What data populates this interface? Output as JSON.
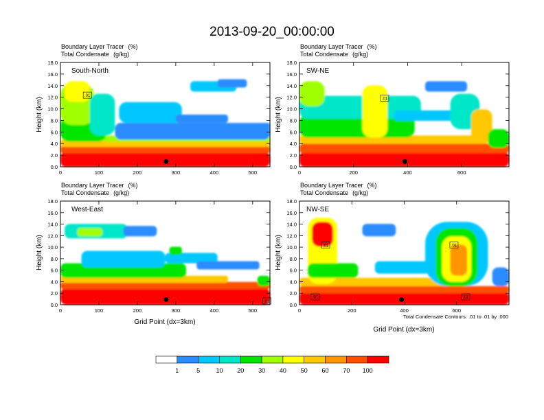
{
  "figure": {
    "title": "2013-09-20_00:00:00",
    "contour_note": "Total Condensate Contours: .01 to .01 by .000"
  },
  "chart_data": [
    {
      "type": "heatmap",
      "panel_label": "South-North",
      "subtitle_left": "Boundary Layer Tracer",
      "subtitle_left_unit": "(%)",
      "subtitle_left2": "Total Condensate",
      "subtitle_left2_unit": "(g/kg)",
      "ylabel": "Height (km)",
      "xlabel": "",
      "xlim": [
        0,
        545
      ],
      "ylim": [
        0,
        18
      ],
      "x_ticks": [
        0,
        100,
        200,
        300,
        400,
        500
      ],
      "y_ticks": [
        "0.0",
        "2.0",
        "4.0",
        "6.0",
        "8.0",
        "10.0",
        "12.0",
        "14.0",
        "16.0",
        "18.0"
      ],
      "contour_labels": [
        {
          "text": ".01",
          "x": 70,
          "y": 12.3
        }
      ],
      "marker": {
        "x": 275,
        "y": 0.9
      }
    },
    {
      "type": "heatmap",
      "panel_label": "SW-NE",
      "subtitle_left": "Boundary Layer Tracer",
      "subtitle_left_unit": "(%)",
      "subtitle_left2": "Total Condensate",
      "subtitle_left2_unit": "(g/kg)",
      "ylabel": "Height (km)",
      "xlabel": "",
      "xlim": [
        0,
        775
      ],
      "ylim": [
        0,
        18
      ],
      "x_ticks": [
        0,
        200,
        400,
        600
      ],
      "y_ticks": [
        "0.0",
        "2.0",
        "4.0",
        "6.0",
        "8.0",
        "10.0",
        "12.0",
        "14.0",
        "16.0",
        "18.0"
      ],
      "contour_labels": [
        {
          "text": ".01",
          "x": 315,
          "y": 11.8
        }
      ],
      "marker": {
        "x": 390,
        "y": 0.9
      }
    },
    {
      "type": "heatmap",
      "panel_label": "West-East",
      "subtitle_left": "Boundary Layer Tracer",
      "subtitle_left_unit": "(%)",
      "subtitle_left2": "Total Condensate",
      "subtitle_left2_unit": "(g/kg)",
      "ylabel": "Height (km)",
      "xlabel": "Grid Point (dx=3km)",
      "xlim": [
        0,
        545
      ],
      "ylim": [
        0,
        18
      ],
      "x_ticks": [
        0,
        100,
        200,
        300,
        400,
        500
      ],
      "y_ticks": [
        "0.0",
        "2.0",
        "4.0",
        "6.0",
        "8.0",
        "10.0",
        "12.0",
        "14.0",
        "16.0",
        "18.0"
      ],
      "contour_labels": [
        {
          "text": ".01",
          "x": 537,
          "y": 0.6
        }
      ],
      "marker": {
        "x": 275,
        "y": 0.9
      }
    },
    {
      "type": "heatmap",
      "panel_label": "NW-SE",
      "subtitle_left": "Boundary Layer Tracer",
      "subtitle_left_unit": "(%)",
      "subtitle_left2": "Total Condensate",
      "subtitle_left2_unit": "(g/kg)",
      "ylabel": "Height (km)",
      "xlabel": "Grid Point (dx=3km)",
      "xlim": [
        0,
        800
      ],
      "ylim": [
        0,
        18
      ],
      "x_ticks": [
        0,
        200,
        400,
        600
      ],
      "y_ticks": [
        "0.0",
        "2.0",
        "4.0",
        "6.0",
        "8.0",
        "10.0",
        "12.0",
        "14.0",
        "16.0",
        "18.0"
      ],
      "contour_labels": [
        {
          "text": ".01",
          "x": 100,
          "y": 10.3
        },
        {
          "text": ".01",
          "x": 60,
          "y": 1.3
        },
        {
          "text": ".01",
          "x": 635,
          "y": 1.3
        },
        {
          "text": ".01",
          "x": 590,
          "y": 10.3
        }
      ],
      "marker": {
        "x": 390,
        "y": 0.9
      }
    }
  ],
  "colorbar": {
    "labels": [
      "1",
      "5",
      "10",
      "20",
      "30",
      "40",
      "50",
      "60",
      "70",
      "100"
    ],
    "colors": [
      "#ffffff",
      "#2a8cff",
      "#00c8ff",
      "#00e6c8",
      "#00e600",
      "#a0ff00",
      "#ffff00",
      "#ffc800",
      "#ff9600",
      "#ff5000",
      "#ff0000"
    ]
  }
}
